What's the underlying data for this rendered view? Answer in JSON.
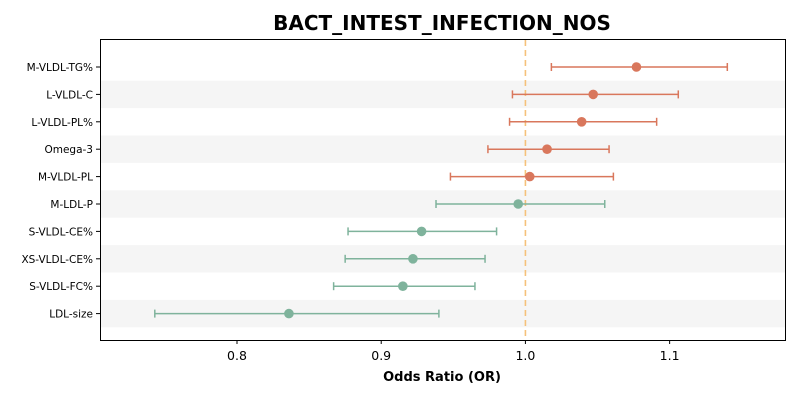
{
  "chart_data": {
    "type": "forest",
    "title": "BACT_INTEST_INFECTION_NOS",
    "xlabel": "Odds Ratio (OR)",
    "ylabel": "",
    "xlim": [
      0.705,
      1.18
    ],
    "xticks": [
      0.8,
      0.9,
      1.0,
      1.1
    ],
    "xtick_labels": [
      "0.8",
      "0.9",
      "1.0",
      "1.1"
    ],
    "reference_line": 1.0,
    "reference_color": "#f5c17a",
    "positive_color": "#d9775c",
    "negative_color": "#7fb39c",
    "stripe_color": "#f5f5f5",
    "rows": [
      {
        "label": "M-VLDL-TG%",
        "or": 1.077,
        "lower": 1.018,
        "upper": 1.14
      },
      {
        "label": "L-VLDL-C",
        "or": 1.047,
        "lower": 0.991,
        "upper": 1.106
      },
      {
        "label": "L-VLDL-PL%",
        "or": 1.039,
        "lower": 0.989,
        "upper": 1.091
      },
      {
        "label": "Omega-3",
        "or": 1.015,
        "lower": 0.974,
        "upper": 1.058
      },
      {
        "label": "M-VLDL-PL",
        "or": 1.003,
        "lower": 0.948,
        "upper": 1.061
      },
      {
        "label": "M-LDL-P",
        "or": 0.995,
        "lower": 0.938,
        "upper": 1.055
      },
      {
        "label": "S-VLDL-CE%",
        "or": 0.928,
        "lower": 0.877,
        "upper": 0.98
      },
      {
        "label": "XS-VLDL-CE%",
        "or": 0.922,
        "lower": 0.875,
        "upper": 0.972
      },
      {
        "label": "S-VLDL-FC%",
        "or": 0.915,
        "lower": 0.867,
        "upper": 0.965
      },
      {
        "label": "LDL-size",
        "or": 0.836,
        "lower": 0.743,
        "upper": 0.94
      }
    ]
  }
}
